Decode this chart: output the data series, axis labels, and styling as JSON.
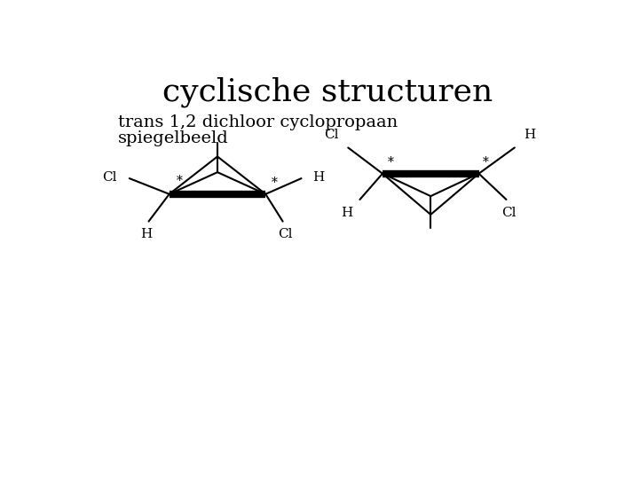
{
  "title": "cyclische structuren",
  "subtitle_line1": "trans 1,2 dichloor cyclopropaan",
  "subtitle_line2": "spiegelbeeld",
  "title_fontsize": 26,
  "subtitle_fontsize": 14,
  "bg_color": "#ffffff",
  "line_color": "#000000",
  "bold_lw": 6,
  "thin_lw": 1.5,
  "label_fontsize": 11,
  "star_fontsize": 10
}
